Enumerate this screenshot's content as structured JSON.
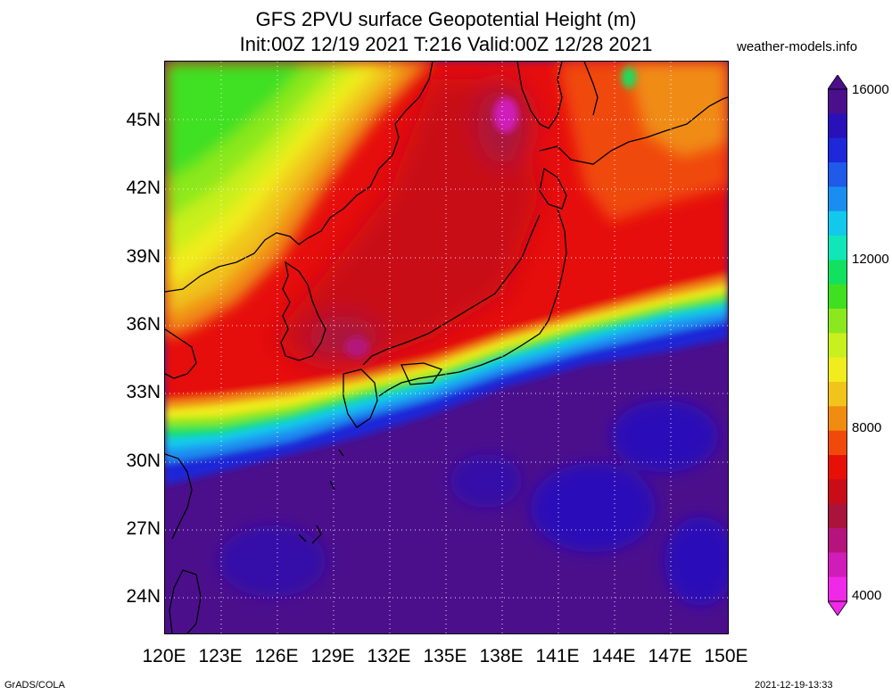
{
  "header": {
    "title_line1": "GFS 2PVU surface Geopotential Height (m)",
    "title_line2": "Init:00Z 12/19 2021 T:216 Valid:00Z 12/28 2021",
    "credit": "weather-models.info"
  },
  "axes": {
    "lat_labels": [
      "45N",
      "42N",
      "39N",
      "36N",
      "33N",
      "30N",
      "27N",
      "24N"
    ],
    "lon_labels": [
      "120E",
      "123E",
      "126E",
      "129E",
      "132E",
      "135E",
      "138E",
      "141E",
      "144E",
      "147E",
      "150E"
    ]
  },
  "colorbar": {
    "labels": [
      "16000",
      "12000",
      "8000",
      "4000"
    ],
    "colors": [
      "#4b0f8c",
      "#2a10b8",
      "#1e28d8",
      "#1f5ae8",
      "#1a8ef0",
      "#12c8ec",
      "#10e6b8",
      "#12e060",
      "#40e020",
      "#8ce81e",
      "#c8f01e",
      "#f0ec1e",
      "#f0c41a",
      "#f08c12",
      "#f04a0a",
      "#e61008",
      "#c80c18",
      "#a8143c",
      "#b4147c",
      "#d01cb8",
      "#f028e8"
    ]
  },
  "footer": {
    "left": "GrADS/COLA",
    "right": "2021-12-19-13:33"
  }
}
